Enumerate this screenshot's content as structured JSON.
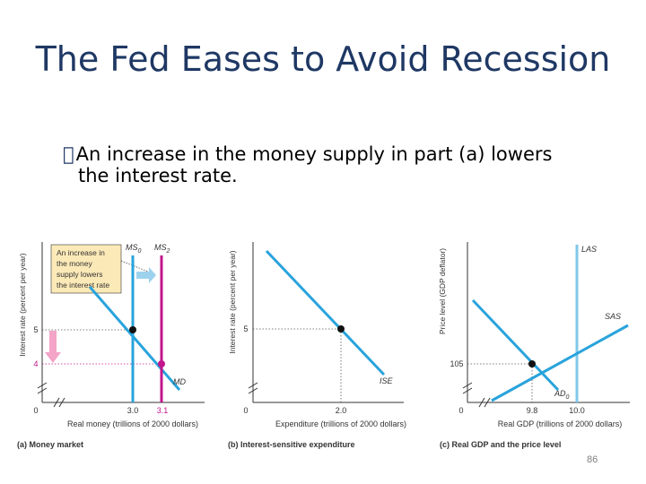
{
  "title": "The Fed Eases to Avoid Recession",
  "bullet": {
    "line1": "An increase in the money supply in part (a) lowers",
    "line2": "the interest rate."
  },
  "colors": {
    "title": "#1f3864",
    "curve_blue": "#29a3dc",
    "curve_magenta": "#c2168c",
    "las_blue": "#7fc8ea",
    "sas_blue": "#29a3dc",
    "callout_fill": "#fbe9b7",
    "arrow_pink": "#f3a4c7",
    "arrow_lightblue": "#9dd2ee"
  },
  "panel_a": {
    "ylabel": "Interest rate (percent per year)",
    "xlabel": "Real money (trillions of 2000 dollars)",
    "caption": "(a) Money market",
    "origin": "0",
    "y_ticks": [
      "5",
      "4"
    ],
    "x_ticks": [
      "3.0",
      "3.1"
    ],
    "curve_labels": {
      "ms0": "MS",
      "ms0_sub": "0",
      "ms2": "MS",
      "ms2_sub": "2",
      "md": "MD"
    },
    "callout": [
      "An increase in",
      "the money",
      "supply lowers",
      "the interest rate"
    ]
  },
  "panel_b": {
    "ylabel": "Interest rate (percent per year)",
    "xlabel": "Expenditure (trillions of 2000 dollars)",
    "caption": "(b) Interest-sensitive expenditure",
    "origin": "0",
    "y_ticks": [
      "5"
    ],
    "x_ticks": [
      "2.0"
    ],
    "curve_label": "ISE"
  },
  "panel_c": {
    "ylabel": "Price level (GDP deflator)",
    "xlabel": "Real GDP (trillions of 2000 dollars)",
    "caption": "(c) Real GDP and the price level",
    "origin": "0",
    "y_ticks": [
      "105"
    ],
    "x_ticks": [
      "9.8",
      "10.0"
    ],
    "curve_labels": {
      "las": "LAS",
      "sas": "SAS",
      "ad": "AD",
      "ad_sub": "0"
    }
  },
  "page_number": "86"
}
